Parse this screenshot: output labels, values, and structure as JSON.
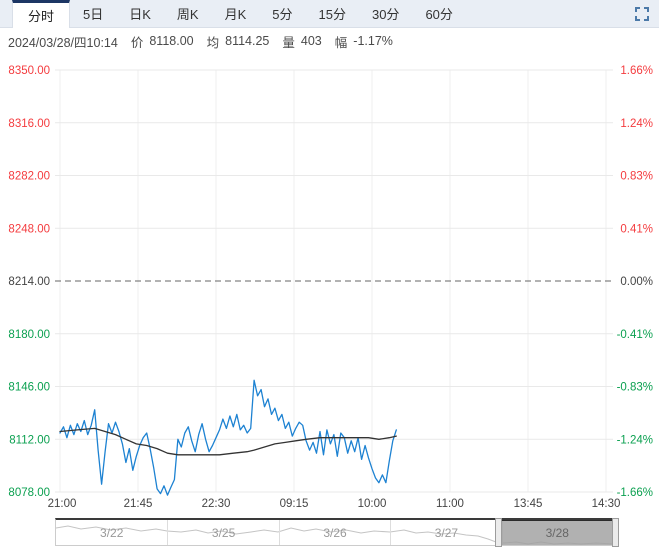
{
  "toolbar": {
    "tabs": [
      {
        "label": "分时",
        "active": true
      },
      {
        "label": "5日",
        "active": false
      },
      {
        "label": "日K",
        "active": false
      },
      {
        "label": "周K",
        "active": false
      },
      {
        "label": "月K",
        "active": false
      },
      {
        "label": "5分",
        "active": false
      },
      {
        "label": "15分",
        "active": false
      },
      {
        "label": "30分",
        "active": false
      },
      {
        "label": "60分",
        "active": false
      }
    ],
    "fullscreen_icon": "expand-corners",
    "fullscreen_color": "#4b79a8"
  },
  "info_bar": {
    "datetime": "2024/03/28/四10:14",
    "price_label": "价",
    "price_value": "8118.00",
    "avg_label": "均",
    "avg_value": "8114.25",
    "volume_label": "量",
    "volume_value": "403",
    "change_label": "幅",
    "change_value": "-1.17%"
  },
  "chart_data": {
    "type": "line",
    "title": "intraday (分时) futures price chart",
    "prev_close": 8214,
    "ylim": [
      8078,
      8350
    ],
    "grid": true,
    "colors": {
      "red": "#f43b3e",
      "green": "#0ba050",
      "black": "#444444",
      "price_line": "#1d82d2",
      "avg_line": "#333333",
      "gridline": "#e9e9e9",
      "dashline": "#666666",
      "axis_text": "#444444"
    },
    "price_ticks": [
      {
        "label": "8350.00",
        "color": "red"
      },
      {
        "label": "8316.00",
        "color": "red"
      },
      {
        "label": "8282.00",
        "color": "red"
      },
      {
        "label": "8248.00",
        "color": "red"
      },
      {
        "label": "8214.00",
        "color": "black",
        "dashed": true
      },
      {
        "label": "8180.00",
        "color": "green"
      },
      {
        "label": "8146.00",
        "color": "green"
      },
      {
        "label": "8112.00",
        "color": "green"
      },
      {
        "label": "8078.00",
        "color": "green"
      }
    ],
    "percent_ticks": [
      {
        "label": "1.66%",
        "color": "red"
      },
      {
        "label": "1.24%",
        "color": "red"
      },
      {
        "label": "0.83%",
        "color": "red"
      },
      {
        "label": "0.41%",
        "color": "red"
      },
      {
        "label": "0.00%",
        "color": "black"
      },
      {
        "label": "-0.41%",
        "color": "green"
      },
      {
        "label": "-0.83%",
        "color": "green"
      },
      {
        "label": "-1.24%",
        "color": "green"
      },
      {
        "label": "-1.66%",
        "color": "green"
      }
    ],
    "x_axis": {
      "ticks": [
        "21:00",
        "21:45",
        "22:30",
        "09:15",
        "10:00",
        "11:00",
        "13:45",
        "14:30"
      ],
      "minutes_per_tick": 45,
      "total_minutes": 345
    },
    "series": [
      {
        "name": "price",
        "color": "#1d82d2",
        "width": 1.3,
        "points": [
          [
            0,
            8116
          ],
          [
            2,
            8120
          ],
          [
            4,
            8113
          ],
          [
            6,
            8121
          ],
          [
            8,
            8115
          ],
          [
            10,
            8122
          ],
          [
            12,
            8117
          ],
          [
            14,
            8124
          ],
          [
            16,
            8115
          ],
          [
            18,
            8121
          ],
          [
            20,
            8131
          ],
          [
            22,
            8105
          ],
          [
            24,
            8083
          ],
          [
            26,
            8104
          ],
          [
            28,
            8122
          ],
          [
            30,
            8116
          ],
          [
            32,
            8123
          ],
          [
            34,
            8117
          ],
          [
            36,
            8109
          ],
          [
            38,
            8097
          ],
          [
            40,
            8106
          ],
          [
            42,
            8092
          ],
          [
            44,
            8101
          ],
          [
            46,
            8108
          ],
          [
            48,
            8113
          ],
          [
            50,
            8116
          ],
          [
            52,
            8106
          ],
          [
            54,
            8094
          ],
          [
            56,
            8080
          ],
          [
            58,
            8077
          ],
          [
            60,
            8082
          ],
          [
            62,
            8076
          ],
          [
            64,
            8081
          ],
          [
            66,
            8086
          ],
          [
            68,
            8112
          ],
          [
            70,
            8107
          ],
          [
            72,
            8116
          ],
          [
            74,
            8120
          ],
          [
            76,
            8111
          ],
          [
            78,
            8104
          ],
          [
            80,
            8115
          ],
          [
            82,
            8122
          ],
          [
            84,
            8112
          ],
          [
            86,
            8104
          ],
          [
            88,
            8108
          ],
          [
            90,
            8113
          ],
          [
            92,
            8118
          ],
          [
            94,
            8125
          ],
          [
            96,
            8119
          ],
          [
            98,
            8127
          ],
          [
            100,
            8120
          ],
          [
            102,
            8128
          ],
          [
            104,
            8118
          ],
          [
            106,
            8121
          ],
          [
            108,
            8116
          ],
          [
            110,
            8119
          ],
          [
            112,
            8150
          ],
          [
            114,
            8140
          ],
          [
            116,
            8144
          ],
          [
            118,
            8133
          ],
          [
            120,
            8138
          ],
          [
            122,
            8128
          ],
          [
            124,
            8132
          ],
          [
            126,
            8124
          ],
          [
            128,
            8128
          ],
          [
            130,
            8119
          ],
          [
            132,
            8123
          ],
          [
            134,
            8114
          ],
          [
            136,
            8119
          ],
          [
            138,
            8123
          ],
          [
            140,
            8121
          ],
          [
            142,
            8111
          ],
          [
            144,
            8105
          ],
          [
            146,
            8110
          ],
          [
            148,
            8103
          ],
          [
            150,
            8117
          ],
          [
            152,
            8102
          ],
          [
            154,
            8118
          ],
          [
            156,
            8109
          ],
          [
            158,
            8115
          ],
          [
            160,
            8101
          ],
          [
            162,
            8116
          ],
          [
            164,
            8113
          ],
          [
            166,
            8103
          ],
          [
            168,
            8111
          ],
          [
            170,
            8104
          ],
          [
            172,
            8113
          ],
          [
            174,
            8099
          ],
          [
            176,
            8108
          ],
          [
            178,
            8100
          ],
          [
            180,
            8093
          ],
          [
            182,
            8087
          ],
          [
            184,
            8084
          ],
          [
            186,
            8089
          ],
          [
            188,
            8084
          ],
          [
            190,
            8098
          ],
          [
            192,
            8111
          ],
          [
            194,
            8118
          ]
        ]
      },
      {
        "name": "average",
        "color": "#333333",
        "width": 1.3,
        "points": [
          [
            0,
            8117
          ],
          [
            10,
            8118
          ],
          [
            20,
            8119
          ],
          [
            26,
            8117
          ],
          [
            32,
            8115
          ],
          [
            38,
            8112
          ],
          [
            44,
            8109
          ],
          [
            50,
            8108
          ],
          [
            56,
            8106
          ],
          [
            62,
            8103
          ],
          [
            68,
            8102
          ],
          [
            80,
            8102
          ],
          [
            92,
            8102
          ],
          [
            100,
            8103
          ],
          [
            108,
            8104
          ],
          [
            112,
            8105
          ],
          [
            118,
            8107
          ],
          [
            124,
            8109
          ],
          [
            130,
            8110
          ],
          [
            136,
            8111
          ],
          [
            142,
            8112
          ],
          [
            150,
            8113
          ],
          [
            160,
            8113
          ],
          [
            170,
            8113
          ],
          [
            178,
            8113
          ],
          [
            184,
            8112
          ],
          [
            190,
            8113
          ],
          [
            194,
            8114
          ]
        ]
      }
    ],
    "navigator": {
      "dates": [
        "3/22",
        "3/25",
        "3/26",
        "3/27",
        "3/28"
      ],
      "selected": "3/28",
      "sparkline_color": "#c4c4c4",
      "sparkline": [
        [
          0,
          8
        ],
        [
          12,
          6
        ],
        [
          25,
          9
        ],
        [
          40,
          7
        ],
        [
          55,
          10
        ],
        [
          70,
          8
        ],
        [
          85,
          11
        ],
        [
          100,
          9
        ],
        [
          111,
          11
        ],
        [
          125,
          12
        ],
        [
          140,
          10
        ],
        [
          152,
          13
        ],
        [
          165,
          11
        ],
        [
          180,
          14
        ],
        [
          195,
          12
        ],
        [
          208,
          10
        ],
        [
          222,
          12
        ],
        [
          235,
          8
        ],
        [
          248,
          11
        ],
        [
          260,
          9
        ],
        [
          275,
          12
        ],
        [
          290,
          10
        ],
        [
          305,
          13
        ],
        [
          318,
          11
        ],
        [
          334,
          12
        ],
        [
          348,
          10
        ],
        [
          360,
          13
        ],
        [
          372,
          12
        ],
        [
          385,
          14
        ],
        [
          398,
          13
        ],
        [
          410,
          15
        ],
        [
          422,
          16
        ],
        [
          432,
          19
        ],
        [
          440,
          22
        ],
        [
          448,
          23
        ],
        [
          460,
          22
        ],
        [
          472,
          24
        ],
        [
          485,
          22
        ],
        [
          498,
          24
        ],
        [
          512,
          23
        ],
        [
          525,
          24
        ],
        [
          540,
          23
        ],
        [
          557,
          24
        ]
      ]
    }
  }
}
